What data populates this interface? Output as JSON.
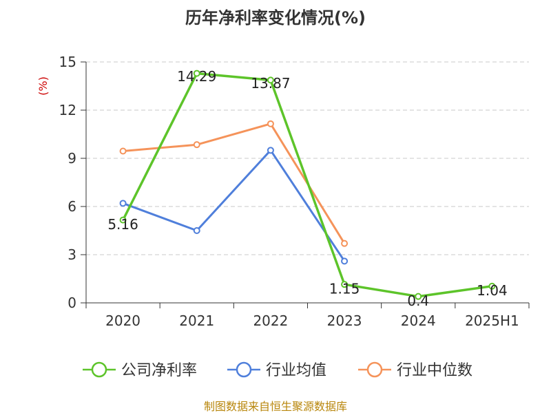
{
  "chart_data": {
    "type": "line",
    "title": "历年净利率变化情况(%)",
    "ylabel": "(%)",
    "categories": [
      "2020",
      "2021",
      "2022",
      "2023",
      "2024",
      "2025H1"
    ],
    "ylim": [
      0,
      15
    ],
    "yticks": [
      "0",
      "3",
      "6",
      "9",
      "12",
      "15"
    ],
    "grid": true,
    "legend_position": "bottom",
    "series": [
      {
        "name": "公司净利率",
        "color": "#5dc42a",
        "values": [
          5.16,
          14.29,
          13.87,
          1.15,
          0.4,
          1.04
        ],
        "labels": [
          "5.16",
          "14.29",
          "13.87",
          "1.15",
          "0.4",
          "1.04"
        ]
      },
      {
        "name": "行业均值",
        "color": "#4f7fdb",
        "values": [
          6.2,
          4.5,
          9.5,
          2.6,
          null,
          null
        ]
      },
      {
        "name": "行业中位数",
        "color": "#f5935a",
        "values": [
          9.45,
          9.85,
          11.15,
          3.7,
          null,
          null
        ]
      }
    ]
  },
  "footer": {
    "source": "制图数据来自恒生聚源数据库"
  }
}
